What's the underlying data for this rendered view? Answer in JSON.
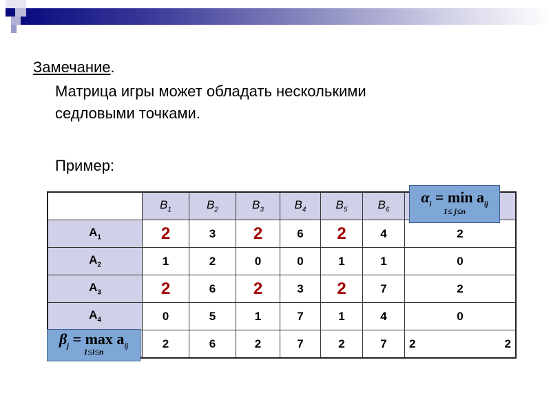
{
  "note_label": "Замечание",
  "note_dot": ".",
  "line1": "Матрица игры может обладать несколькими",
  "line2": "седловыми точками.",
  "example": "Пример:",
  "columns": [
    "B",
    "B",
    "B",
    "B",
    "B",
    "B"
  ],
  "column_subs": [
    "1",
    "2",
    "3",
    "4",
    "5",
    "6"
  ],
  "rows": [
    {
      "label": "A",
      "sub": "1",
      "values": [
        "2",
        "3",
        "2",
        "6",
        "2",
        "4"
      ],
      "alpha": "2",
      "saddle": [
        0,
        2,
        4
      ]
    },
    {
      "label": "A",
      "sub": "2",
      "values": [
        "1",
        "2",
        "0",
        "0",
        "1",
        "1"
      ],
      "alpha": "0",
      "saddle": []
    },
    {
      "label": "A",
      "sub": "3",
      "values": [
        "2",
        "6",
        "2",
        "3",
        "2",
        "7"
      ],
      "alpha": "2",
      "saddle": [
        0,
        2,
        4
      ]
    },
    {
      "label": "A",
      "sub": "4",
      "values": [
        "0",
        "5",
        "1",
        "7",
        "1",
        "4"
      ],
      "alpha": "0",
      "saddle": []
    }
  ],
  "beta_row": {
    "values": [
      "2",
      "6",
      "2",
      "7",
      "2",
      "7"
    ],
    "extra_left": "2",
    "extra_right": "2"
  },
  "alpha_formula": {
    "lhs": "α",
    "lhs_sub": "i",
    "op": "= min a",
    "op_sub": "ij",
    "under": "1≤ j≤n"
  },
  "beta_formula": {
    "lhs": "β",
    "lhs_sub": "j",
    "op": "= max a",
    "op_sub": "ij",
    "under": "1≤i≤n"
  },
  "colors": {
    "saddle": "#a00000",
    "header_bg": "#d0d0e8",
    "formula_bg": "#7ea6d6",
    "bar": "#0a0a80"
  }
}
